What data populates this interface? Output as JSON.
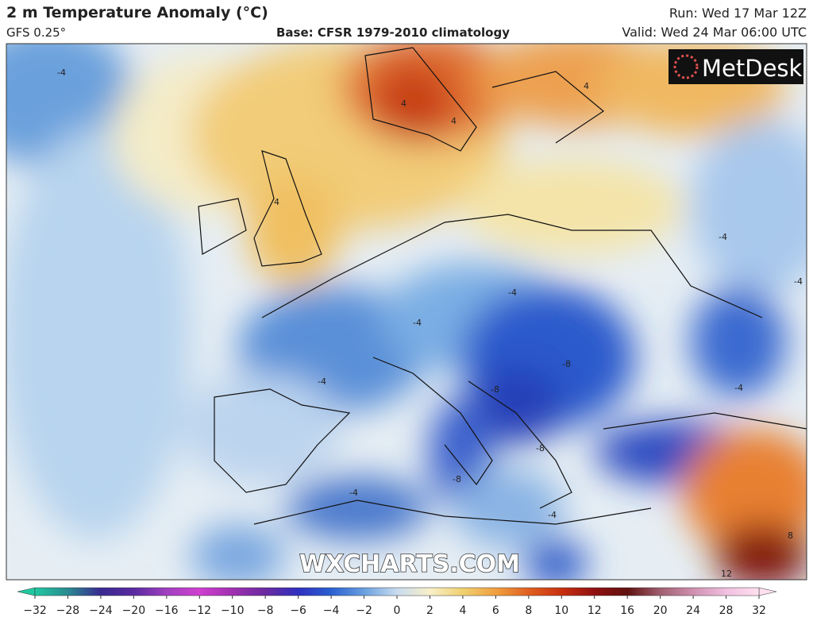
{
  "header": {
    "title": "2 m Temperature Anomaly (°C)",
    "model": "GFS 0.25°",
    "base": "Base: CFSR 1979-2010 climatology",
    "run": "Run: Wed 17 Mar 12Z",
    "valid": "Valid: Wed 24 Mar 06:00 UTC"
  },
  "map": {
    "logo": "MetDesk",
    "watermark": "WXCHARTS.COM",
    "contour_labels": [
      "-4",
      "-4",
      "-4",
      "-4",
      "-4",
      "-8",
      "-8",
      "-8",
      "-8",
      "-4",
      "4",
      "4",
      "4",
      "4",
      "-4",
      "8",
      "12",
      "-4",
      "-4"
    ]
  },
  "colorbar": {
    "ticks": [
      {
        "value": -32,
        "label": "−32"
      },
      {
        "value": -28,
        "label": "−28"
      },
      {
        "value": -24,
        "label": "−24"
      },
      {
        "value": -20,
        "label": "−20"
      },
      {
        "value": -16,
        "label": "−16"
      },
      {
        "value": -12,
        "label": "−12"
      },
      {
        "value": -10,
        "label": "−10"
      },
      {
        "value": -8,
        "label": "−8"
      },
      {
        "value": -6,
        "label": "−6"
      },
      {
        "value": -4,
        "label": "−4"
      },
      {
        "value": -2,
        "label": "−2"
      },
      0,
      2,
      4,
      6,
      8,
      10,
      12,
      16,
      20,
      24,
      28,
      32
    ],
    "colors": [
      "#20c8a0",
      "#2a8a90",
      "#3a2a90",
      "#5a2aa0",
      "#a040c0",
      "#d040d0",
      "#a030b0",
      "#6a2aa0",
      "#3030c0",
      "#2a60d0",
      "#6aa0e0",
      "#c8dcf0",
      "#f8f0c8",
      "#f0d070",
      "#f0a040",
      "#e06020",
      "#c83010",
      "#901010",
      "#601010",
      "#a06070",
      "#d090b0",
      "#f0c0e0",
      "#ffe0f0"
    ]
  }
}
